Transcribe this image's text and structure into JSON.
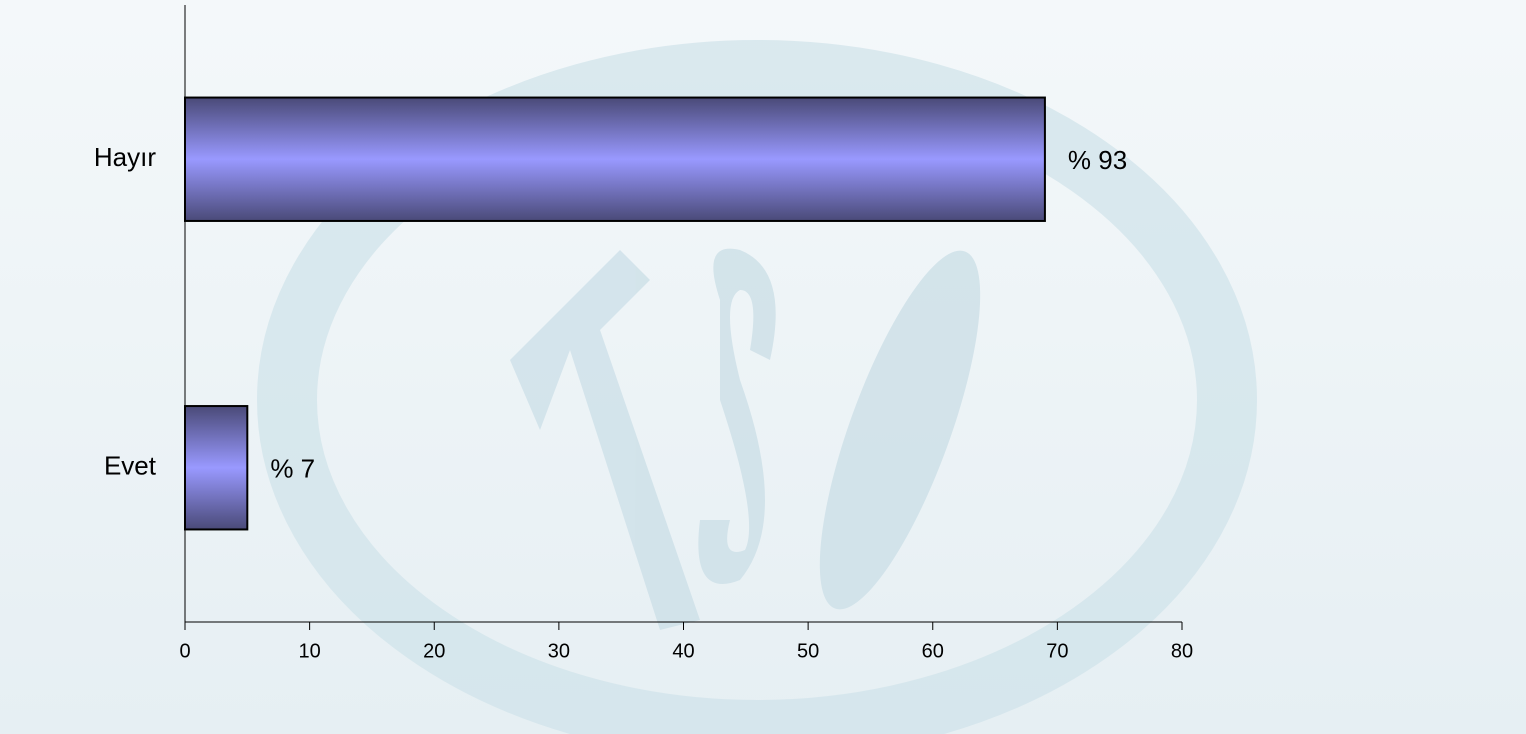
{
  "chart_data": {
    "type": "barh",
    "categories": [
      "Hayır",
      "Evet"
    ],
    "values": [
      69,
      5
    ],
    "bar_labels": [
      "% 93",
      "% 7"
    ],
    "color": "#9999ff",
    "xlim": [
      0,
      80
    ],
    "xticks": [
      0,
      10,
      20,
      30,
      40,
      50,
      60,
      70,
      80
    ]
  }
}
